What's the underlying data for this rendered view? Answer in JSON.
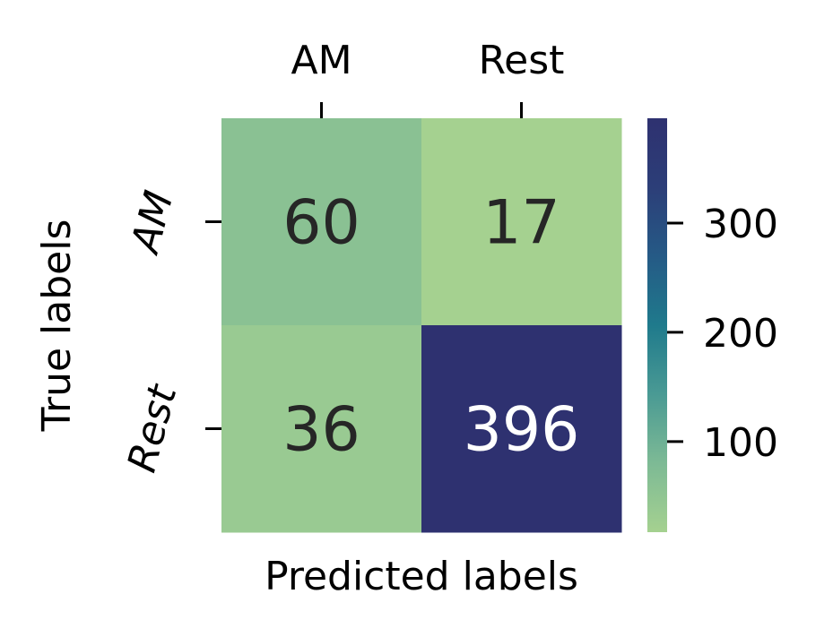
{
  "chart_data": {
    "type": "heatmap",
    "title": "",
    "xlabel": "Predicted labels",
    "ylabel": "True labels",
    "x_categories": [
      "AM",
      "Rest"
    ],
    "y_categories": [
      "AM",
      "Rest"
    ],
    "values": [
      [
        60,
        17
      ],
      [
        36,
        396
      ]
    ],
    "colorbar": {
      "min": 17,
      "max": 396,
      "ticks": [
        100,
        200,
        300
      ],
      "tick_labels": [
        "100",
        "200",
        "300"
      ],
      "colormap": [
        "#a5d190",
        "#7dba95",
        "#4a9a94",
        "#1f7a8c",
        "#255a86",
        "#2c3e78",
        "#2e3170"
      ]
    },
    "annotation_colors": {
      "dark": "#262626",
      "light": "#ffffff"
    },
    "grid": false,
    "x_tick_position": "top",
    "y_tick_label_style": "italic"
  }
}
